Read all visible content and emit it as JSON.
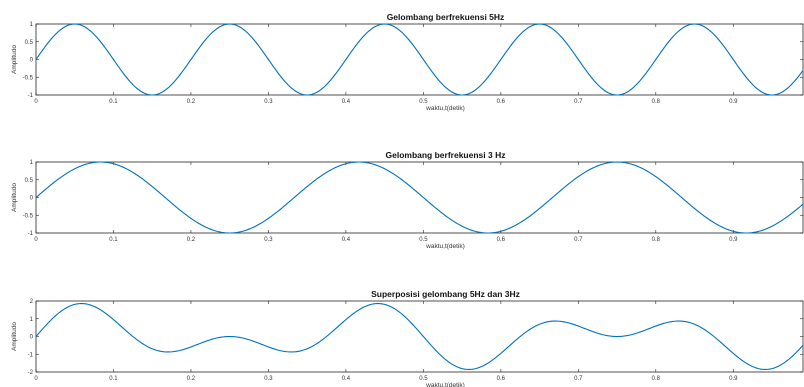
{
  "chart_data": [
    {
      "type": "line",
      "title": "Gelombang berfrekuensi 5Hz",
      "xlabel": "waktu,t(detik)",
      "ylabel": "Amplitudo",
      "xlim": [
        0,
        0.99
      ],
      "ylim": [
        -1,
        1
      ],
      "xticks": [
        0,
        0.1,
        0.2,
        0.3,
        0.4,
        0.5,
        0.6,
        0.7,
        0.8,
        0.9
      ],
      "xtick_labels": [
        "0",
        "0.1",
        "0.2",
        "0.3",
        "0.4",
        "0.5",
        "0.6",
        "0.7",
        "0.8",
        "0.9"
      ],
      "yticks": [
        -1,
        -0.5,
        0,
        0.5,
        1
      ],
      "ytick_labels": [
        "-1",
        "-0.5",
        "0",
        "0.5",
        "1"
      ],
      "grid": false,
      "series": [
        {
          "function": "sin",
          "frequency_hz": 5,
          "amplitude": 1,
          "t_start": 0,
          "t_end": 0.99,
          "t_step": 0.002,
          "color": "#0072BD"
        }
      ]
    },
    {
      "type": "line",
      "title": "Gelombang berfrekuensi 3 Hz",
      "xlabel": "waktu,t(detik)",
      "ylabel": "Amplitudo",
      "xlim": [
        0,
        0.99
      ],
      "ylim": [
        -1,
        1
      ],
      "xticks": [
        0,
        0.1,
        0.2,
        0.3,
        0.4,
        0.5,
        0.6,
        0.7,
        0.8,
        0.9
      ],
      "xtick_labels": [
        "0",
        "0.1",
        "0.2",
        "0.3",
        "0.4",
        "0.5",
        "0.6",
        "0.7",
        "0.8",
        "0.9"
      ],
      "yticks": [
        -1,
        -0.5,
        0,
        0.5,
        1
      ],
      "ytick_labels": [
        "-1",
        "-0.5",
        "0",
        "0.5",
        "1"
      ],
      "grid": false,
      "series": [
        {
          "function": "sin",
          "frequency_hz": 3,
          "amplitude": 1,
          "t_start": 0,
          "t_end": 0.99,
          "t_step": 0.002,
          "color": "#0072BD"
        }
      ]
    },
    {
      "type": "line",
      "title": "Superposisi gelombang 5Hz dan 3Hz",
      "xlabel": "waktu,t(detik)",
      "ylabel": "Amplitudo",
      "xlim": [
        0,
        0.99
      ],
      "ylim": [
        -2,
        2
      ],
      "xticks": [
        0,
        0.1,
        0.2,
        0.3,
        0.4,
        0.5,
        0.6,
        0.7,
        0.8,
        0.9
      ],
      "xtick_labels": [
        "0",
        "0.1",
        "0.2",
        "0.3",
        "0.4",
        "0.5",
        "0.6",
        "0.7",
        "0.8",
        "0.9"
      ],
      "yticks": [
        -2,
        -1,
        0,
        1,
        2
      ],
      "ytick_labels": [
        "-2",
        "-1",
        "0",
        "1",
        "2"
      ],
      "grid": false,
      "series": [
        {
          "function": "sin_sum",
          "frequencies_hz": [
            5,
            3
          ],
          "amplitude": 1,
          "t_start": 0,
          "t_end": 0.99,
          "t_step": 0.002,
          "color": "#0072BD"
        }
      ]
    }
  ]
}
